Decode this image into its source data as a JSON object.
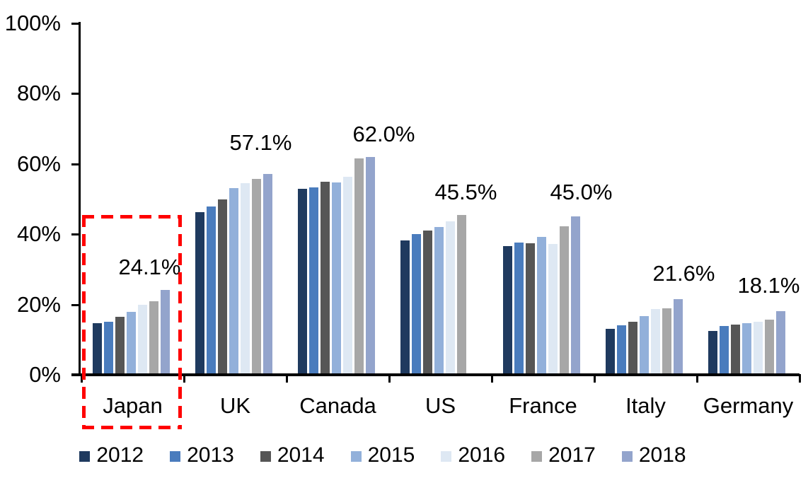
{
  "chart_data": {
    "type": "bar",
    "title": "",
    "categories": [
      "Japan",
      "UK",
      "Canada",
      "US",
      "France",
      "Italy",
      "Germany"
    ],
    "series": [
      {
        "name": "2012",
        "color": "#1F3A5F",
        "values": [
          14.6,
          46.3,
          53.0,
          38.2,
          36.6,
          13.1,
          12.4
        ]
      },
      {
        "name": "2013",
        "color": "#4A7CBD",
        "values": [
          15.0,
          47.8,
          53.4,
          40.1,
          37.6,
          14.0,
          13.8
        ]
      },
      {
        "name": "2014",
        "color": "#565656",
        "values": [
          16.5,
          49.9,
          54.9,
          41.0,
          37.5,
          15.1,
          14.3
        ]
      },
      {
        "name": "2015",
        "color": "#92B0DA",
        "values": [
          17.9,
          53.2,
          54.7,
          42.1,
          39.2,
          16.6,
          14.6
        ]
      },
      {
        "name": "2016",
        "color": "#DEE8F3",
        "values": [
          19.9,
          54.6,
          56.3,
          43.7,
          37.3,
          18.8,
          15.1
        ]
      },
      {
        "name": "2017",
        "color": "#A7A7A7",
        "values": [
          21.0,
          55.7,
          61.5,
          45.5,
          42.3,
          18.9,
          15.7
        ]
      },
      {
        "name": "2018",
        "color": "#93A4CC",
        "values": [
          24.1,
          57.1,
          62.0,
          null,
          45.0,
          21.6,
          18.1
        ]
      }
    ],
    "data_labels": [
      "24.1%",
      "57.1%",
      "62.0%",
      "45.5%",
      "45.0%",
      "21.6%",
      "18.1%"
    ],
    "y_ticks": [
      "0%",
      "20%",
      "40%",
      "60%",
      "80%",
      "100%"
    ],
    "ylim": [
      0,
      100
    ],
    "y_tick_step": 20,
    "grid": false,
    "legend_position": "bottom",
    "highlight": {
      "category": "Japan",
      "color": "#FF0000",
      "style": "dashed-box"
    }
  }
}
